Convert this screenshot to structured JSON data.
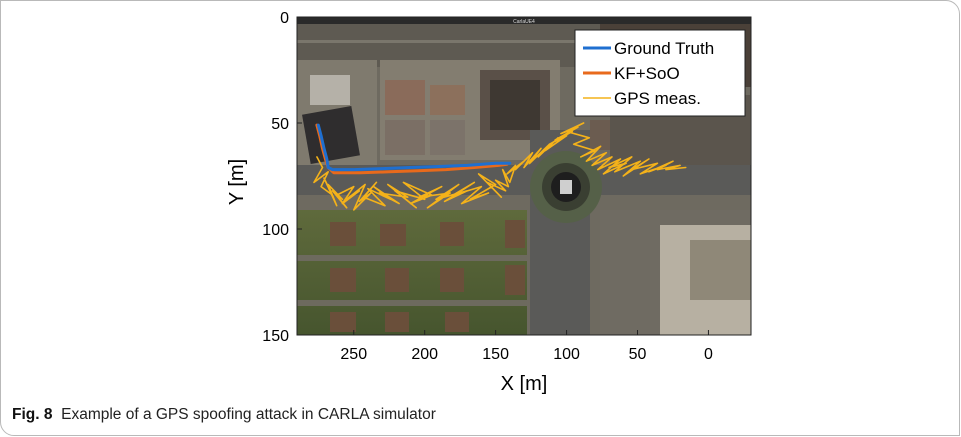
{
  "caption": {
    "label": "Fig. 8",
    "text": "Example of a GPS spoofing attack in CARLA simulator"
  },
  "window_title": "CarlaUE4",
  "colors": {
    "ground_truth": "#1f6fd0",
    "kf_soo": "#e86a1c",
    "gps": "#f4b21a"
  },
  "chart_data": {
    "type": "line",
    "xlabel": "X [m]",
    "ylabel": "Y [m]",
    "xlim": [
      290,
      -30
    ],
    "ylim": [
      150,
      0
    ],
    "x_ticks": [
      "250",
      "200",
      "150",
      "100",
      "50",
      "0"
    ],
    "x_tick_values": [
      250,
      200,
      150,
      100,
      50,
      0
    ],
    "y_ticks": [
      "0",
      "50",
      "100",
      "150"
    ],
    "y_tick_values": [
      0,
      50,
      100,
      150
    ],
    "legend": [
      "Ground Truth",
      "KF+SoO",
      "GPS meas."
    ],
    "legend_position": "top-right",
    "series": [
      {
        "name": "Ground Truth",
        "x": [
          275,
          273,
          271,
          269,
          268,
          265,
          260,
          250,
          230,
          210,
          190,
          170,
          150,
          140
        ],
        "y": [
          51,
          56,
          62,
          67,
          71,
          72,
          72,
          72,
          71.5,
          71,
          70.5,
          70,
          69,
          69
        ]
      },
      {
        "name": "KF+SoO",
        "x": [
          276,
          274,
          272,
          270,
          268,
          264,
          258,
          245,
          225,
          205,
          185,
          165,
          148,
          142
        ],
        "y": [
          51,
          56,
          62,
          67,
          71,
          73.5,
          73.5,
          73.5,
          73,
          72.5,
          72,
          71,
          70,
          69.5
        ]
      },
      {
        "name": "GPS meas.",
        "x": [
          276,
          272,
          278,
          268,
          273,
          265,
          271,
          262,
          268,
          258,
          265,
          255,
          262,
          250,
          258,
          246,
          255,
          242,
          250,
          238,
          246,
          234,
          243,
          228,
          240,
          224,
          236,
          218,
          232,
          212,
          226,
          206,
          221,
          200,
          215,
          195,
          210,
          188,
          204,
          182,
          198,
          176,
          192,
          170,
          186,
          165,
          180,
          160,
          174,
          155,
          168,
          150,
          162,
          146,
          156,
          143,
          150,
          141,
          145,
          140,
          136,
          142,
          130,
          136,
          124,
          130,
          118,
          126,
          112,
          120,
          106,
          115,
          100,
          112,
          96,
          108,
          92,
          104,
          88,
          100,
          84,
          95,
          80,
          90,
          76,
          86,
          72,
          82,
          68,
          78,
          62,
          74,
          58,
          70,
          54,
          66,
          48,
          60,
          42,
          54,
          36,
          48,
          30,
          42,
          25,
          36,
          20,
          30,
          16
        ],
        "y": [
          66,
          71,
          78,
          73,
          80,
          84,
          76,
          89,
          79,
          86,
          82,
          90,
          84,
          80,
          88,
          82,
          86,
          79,
          91,
          83,
          87,
          78,
          85,
          89,
          81,
          86,
          80,
          88,
          83,
          85,
          79,
          90,
          82,
          86,
          78,
          84,
          88,
          80,
          85,
          83,
          90,
          79,
          86,
          82,
          87,
          78,
          84,
          80,
          88,
          83,
          86,
          79,
          74,
          85,
          78,
          82,
          77,
          80,
          72,
          78,
          70,
          74,
          68,
          72,
          64,
          71,
          62,
          69,
          60,
          66,
          57,
          63,
          56,
          60,
          54,
          58,
          52,
          55,
          50,
          54,
          57,
          60,
          63,
          66,
          61,
          68,
          64,
          70,
          66,
          72,
          67,
          74,
          69,
          71,
          66,
          73,
          68,
          75,
          67,
          72,
          69,
          74,
          70,
          73,
          68,
          72,
          70,
          72,
          71
        ]
      }
    ],
    "grid": false
  }
}
